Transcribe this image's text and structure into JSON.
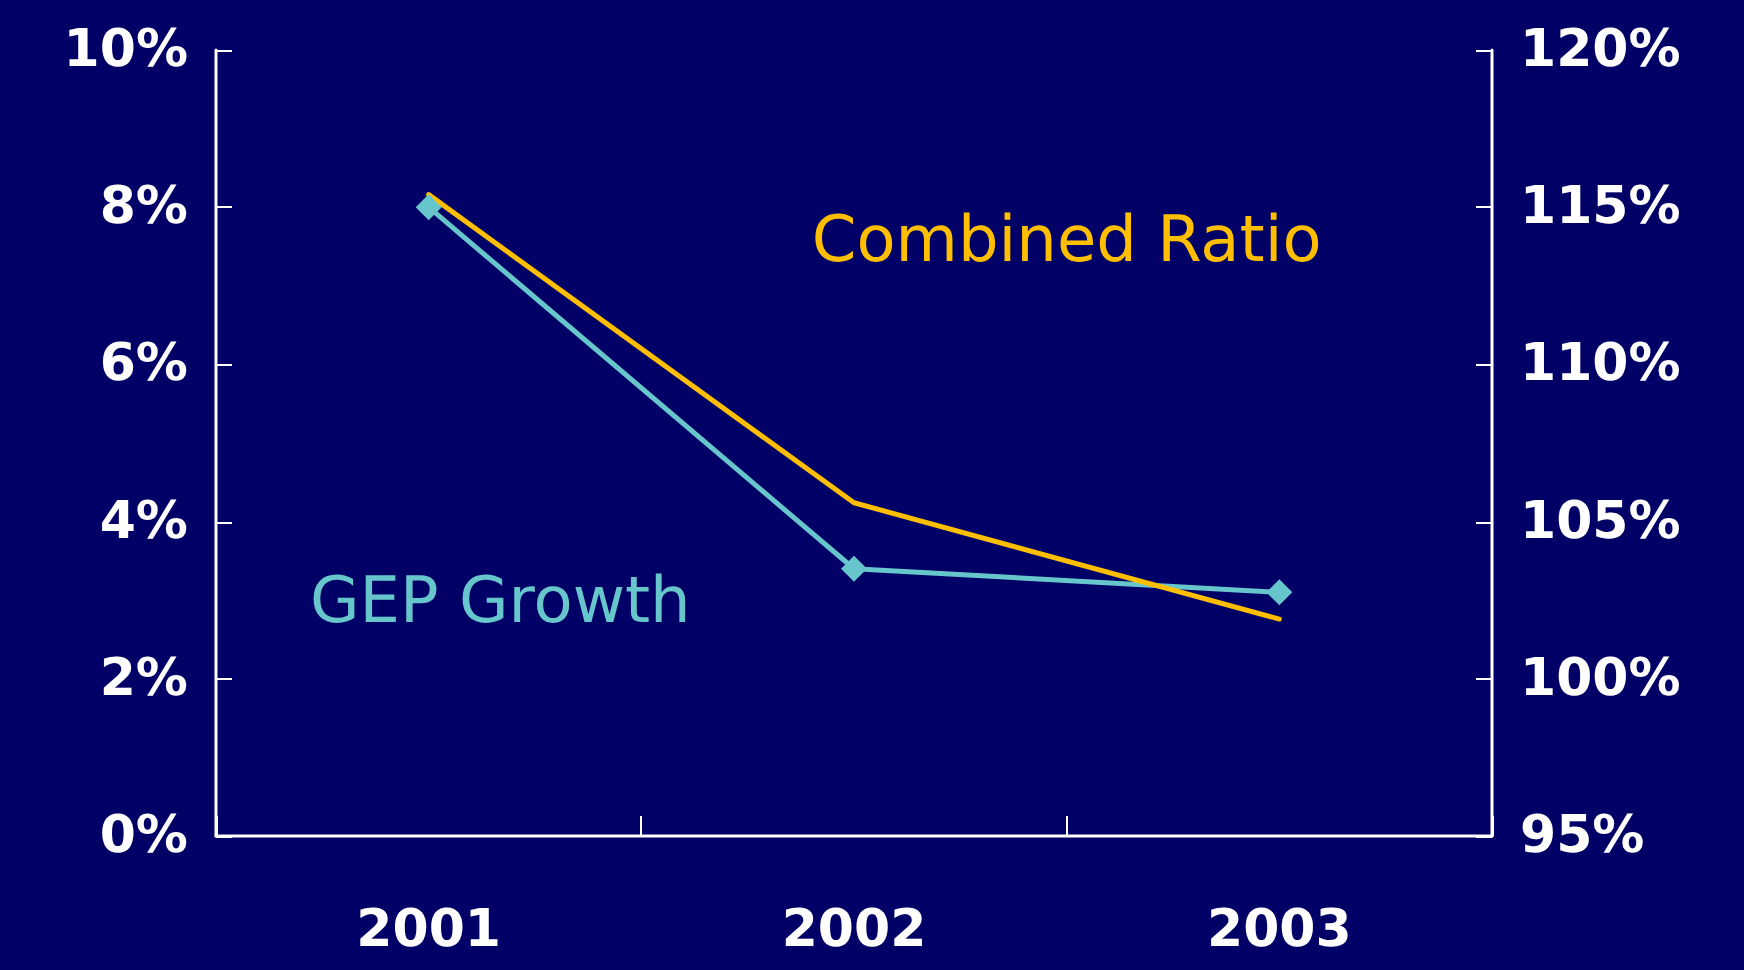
{
  "chart_data": {
    "type": "line",
    "categories": [
      "2001",
      "2002",
      "2003"
    ],
    "series": [
      {
        "name": "GEP Growth",
        "color": "#66c6cc",
        "values": [
          8.0,
          3.4,
          3.1
        ],
        "marker": "diamond"
      },
      {
        "name": "Combined Ratio",
        "color": "#ffbf00",
        "values": [
          115.4,
          105.6,
          101.9
        ],
        "axis": "y2",
        "marker": "none"
      }
    ],
    "ylim": [
      0,
      10
    ],
    "yticks": [
      {
        "value": 0,
        "label": "0%"
      },
      {
        "value": 2,
        "label": "2%"
      },
      {
        "value": 4,
        "label": "4%"
      },
      {
        "value": 6,
        "label": "6%"
      },
      {
        "value": 8,
        "label": "8%"
      },
      {
        "value": 10,
        "label": "10%"
      }
    ],
    "y2lim": [
      95,
      120
    ],
    "y2ticks": [
      {
        "value": 95,
        "label": "95%"
      },
      {
        "value": 100,
        "label": "100%"
      },
      {
        "value": 105,
        "label": "105%"
      },
      {
        "value": 110,
        "label": "110%"
      },
      {
        "value": 115,
        "label": "115%"
      },
      {
        "value": 120,
        "label": "120%"
      }
    ],
    "grid": false,
    "legend": false
  }
}
